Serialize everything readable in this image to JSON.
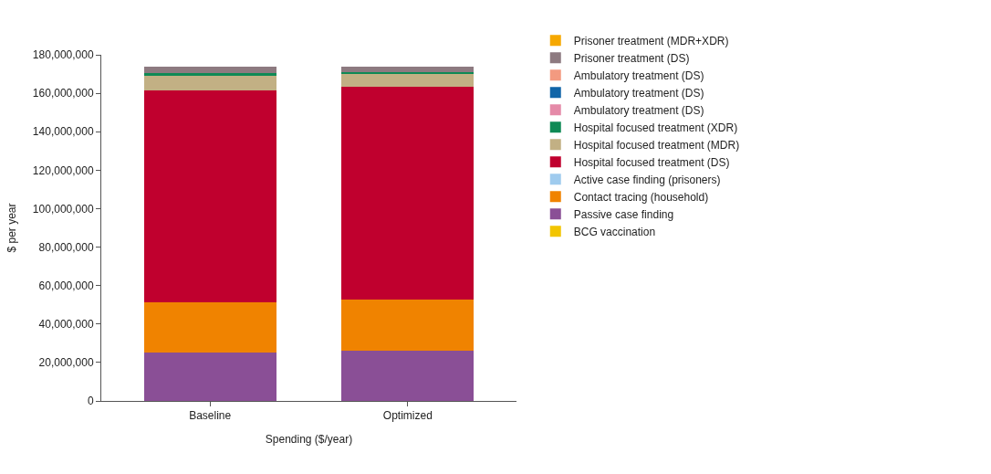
{
  "chart_data": {
    "type": "bar",
    "stacked": true,
    "xlabel": "Spending ($/year)",
    "ylabel": "$ per year",
    "categories": [
      "Baseline",
      "Optimized"
    ],
    "series": [
      {
        "name": "BCG vaccination",
        "color": "#f2c500",
        "values": [
          0,
          0
        ]
      },
      {
        "name": "Passive case finding",
        "color": "#8a4f96",
        "values": [
          25000000,
          26300000
        ]
      },
      {
        "name": "Contact tracing (household)",
        "color": "#f08300",
        "values": [
          26500000,
          26400000
        ]
      },
      {
        "name": "Active case finding (prisoners)",
        "color": "#9fcbee",
        "values": [
          0,
          0
        ]
      },
      {
        "name": "Hospital focused treatment (DS)",
        "color": "#c0002e",
        "values": [
          110200000,
          110700000
        ]
      },
      {
        "name": "Hospital focused treatment (MDR)",
        "color": "#c2b084",
        "values": [
          7700000,
          6400000
        ]
      },
      {
        "name": "Hospital focused treatment (XDR)",
        "color": "#0e8a55",
        "values": [
          900000,
          1000000
        ]
      },
      {
        "name": "Ambulatory treatment (DS)",
        "color": "#e58aa8",
        "values": [
          0,
          0
        ]
      },
      {
        "name": "Ambulatory treatment (DS)",
        "color": "#1165a8",
        "values": [
          0,
          0
        ]
      },
      {
        "name": "Ambulatory treatment (DS)",
        "color": "#f39a80",
        "values": [
          0,
          0
        ]
      },
      {
        "name": "Prisoner treatment (DS)",
        "color": "#8d7a80",
        "values": [
          3500000,
          3000000
        ]
      },
      {
        "name": "Prisoner treatment (MDR+XDR)",
        "color": "#f6a800",
        "values": [
          0,
          0
        ]
      }
    ],
    "ylim": [
      0,
      180000000
    ],
    "yticks": [
      0,
      {
        "value": 20000000,
        "label": "20,000,000"
      },
      {
        "value": 40000000,
        "label": "40,000,000"
      },
      {
        "value": 60000000,
        "label": "60,000,000"
      },
      {
        "value": 80000000,
        "label": "80,000,000"
      },
      {
        "value": 100000000,
        "label": "100,000,000"
      },
      {
        "value": 120000000,
        "label": "120,000,000"
      },
      {
        "value": 140000000,
        "label": "140,000,000"
      },
      {
        "value": 160000000,
        "label": "160,000,000"
      },
      {
        "value": 180000000,
        "label": "180,000,000"
      }
    ],
    "legend": "right"
  }
}
